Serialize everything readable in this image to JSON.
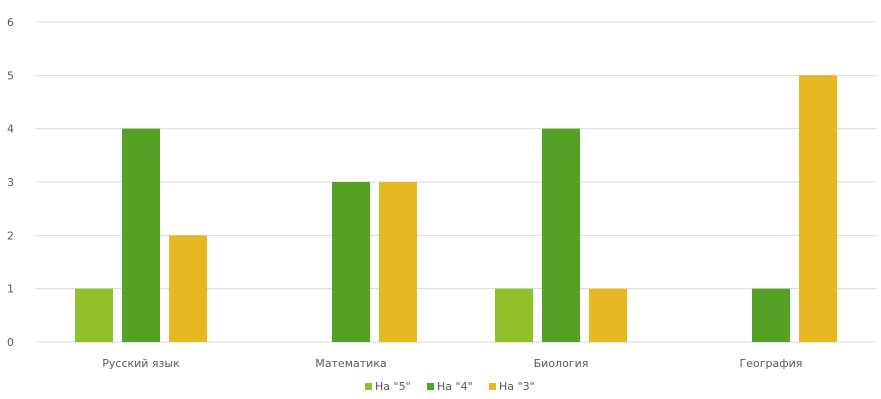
{
  "chart_data": {
    "type": "bar",
    "categories": [
      "Русский язык",
      "Математика",
      "Биология",
      "География"
    ],
    "series": [
      {
        "name": "На \"5\"",
        "values": [
          1,
          0,
          1,
          0
        ],
        "color": "#92C02A"
      },
      {
        "name": "На \"4\"",
        "values": [
          4,
          3,
          4,
          1
        ],
        "color": "#55A025"
      },
      {
        "name": "На \"3\"",
        "values": [
          2,
          3,
          1,
          5
        ],
        "color": "#E6B923"
      }
    ],
    "y_ticks": [
      "0",
      "1",
      "2",
      "3",
      "4",
      "5",
      "6"
    ],
    "ylim": [
      0,
      6
    ],
    "grid": true,
    "legend_position": "bottom",
    "colors": {
      "gridline": "#D9D9D9",
      "text": "#595959"
    }
  }
}
